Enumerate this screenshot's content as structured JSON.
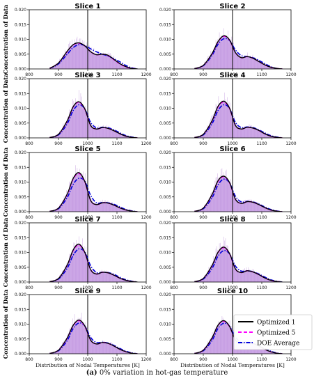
{
  "caption": {
    "tag": "(a)",
    "text": " 0% variation in hot-gas temperature"
  },
  "legend": {
    "entries": [
      {
        "label": "Optimized 1",
        "color": "#000000",
        "style": "solid"
      },
      {
        "label": "Optimized 5",
        "color": "#ff00ff",
        "style": "dashed"
      },
      {
        "label": "DOE Average",
        "color": "#0000dd",
        "style": "dashdot"
      }
    ]
  },
  "colors": {
    "hist": "#c9a0e6",
    "hist_edge": "#b98ad9",
    "vline": "#000000"
  },
  "chart_data": [
    {
      "type": "area",
      "title": "Slice 1",
      "ylabel": "Concentration of Data",
      "xlabel": "",
      "xlim": [
        800,
        1200
      ],
      "ylim": [
        0,
        0.02
      ],
      "xticks": [
        800,
        900,
        1000,
        1100,
        1200
      ],
      "yticks": [
        0,
        0.005,
        0.01,
        0.015,
        0.02
      ],
      "vline": 1000,
      "x": [
        870,
        900,
        930,
        950,
        970,
        990,
        1010,
        1030,
        1050,
        1070,
        1090,
        1110,
        1130,
        1150,
        1170
      ],
      "series": [
        {
          "name": "Optimized 1",
          "values": [
            0.0002,
            0.002,
            0.006,
            0.0082,
            0.0088,
            0.0078,
            0.0058,
            0.0048,
            0.005,
            0.0046,
            0.0032,
            0.0018,
            0.0008,
            0.0002,
            0.0
          ]
        },
        {
          "name": "Optimized 5",
          "values": [
            0.0002,
            0.002,
            0.0059,
            0.0081,
            0.0087,
            0.0078,
            0.0058,
            0.0048,
            0.005,
            0.0045,
            0.0031,
            0.0017,
            0.0007,
            0.0002,
            0.0
          ]
        },
        {
          "name": "DOE Average",
          "values": [
            0.0002,
            0.0017,
            0.005,
            0.0072,
            0.0082,
            0.0079,
            0.0068,
            0.0058,
            0.005,
            0.0043,
            0.0034,
            0.0024,
            0.0012,
            0.0004,
            0.0
          ]
        }
      ]
    },
    {
      "type": "area",
      "title": "Slice 2",
      "ylabel": "",
      "xlabel": "",
      "xlim": [
        800,
        1200
      ],
      "ylim": [
        0,
        0.02
      ],
      "xticks": [
        800,
        900,
        1000,
        1100,
        1200
      ],
      "yticks": [
        0,
        0.005,
        0.01,
        0.015,
        0.02
      ],
      "vline": 1000,
      "x": [
        870,
        900,
        930,
        950,
        970,
        990,
        1010,
        1030,
        1050,
        1070,
        1090,
        1110,
        1130,
        1150,
        1170
      ],
      "series": [
        {
          "name": "Optimized 1",
          "values": [
            0.0001,
            0.0012,
            0.0052,
            0.0092,
            0.0112,
            0.0098,
            0.0055,
            0.0038,
            0.0042,
            0.0036,
            0.0025,
            0.0014,
            0.0006,
            0.0002,
            0.0
          ]
        },
        {
          "name": "Optimized 5",
          "values": [
            0.0001,
            0.0012,
            0.0051,
            0.0091,
            0.011,
            0.0097,
            0.0055,
            0.0038,
            0.0042,
            0.0036,
            0.0025,
            0.0014,
            0.0006,
            0.0002,
            0.0
          ]
        },
        {
          "name": "DOE Average",
          "values": [
            0.0001,
            0.0011,
            0.0046,
            0.0083,
            0.0102,
            0.0096,
            0.0064,
            0.0045,
            0.0042,
            0.0038,
            0.0029,
            0.0018,
            0.0008,
            0.0002,
            0.0
          ]
        }
      ]
    },
    {
      "type": "area",
      "title": "Slice 3",
      "ylabel": "Concentration of Data",
      "xlabel": "",
      "xlim": [
        800,
        1200
      ],
      "ylim": [
        0,
        0.02
      ],
      "xticks": [
        800,
        900,
        1000,
        1100,
        1200
      ],
      "yticks": [
        0,
        0.005,
        0.01,
        0.015,
        0.02
      ],
      "vline": 1000,
      "x": [
        870,
        900,
        930,
        950,
        970,
        990,
        1010,
        1030,
        1050,
        1070,
        1090,
        1110,
        1130,
        1150,
        1170
      ],
      "series": [
        {
          "name": "Optimized 1",
          "values": [
            0.0001,
            0.0012,
            0.0058,
            0.0105,
            0.0122,
            0.0098,
            0.0042,
            0.003,
            0.0035,
            0.0032,
            0.0024,
            0.0014,
            0.0006,
            0.0002,
            0.0
          ]
        },
        {
          "name": "Optimized 5",
          "values": [
            0.0001,
            0.0012,
            0.0057,
            0.0104,
            0.012,
            0.0097,
            0.0042,
            0.003,
            0.0035,
            0.0032,
            0.0024,
            0.0014,
            0.0006,
            0.0002,
            0.0
          ]
        },
        {
          "name": "DOE Average",
          "values": [
            0.0001,
            0.001,
            0.0048,
            0.0092,
            0.0112,
            0.0098,
            0.0052,
            0.0034,
            0.0036,
            0.0034,
            0.0027,
            0.0017,
            0.0008,
            0.0003,
            0.0
          ]
        }
      ]
    },
    {
      "type": "area",
      "title": "Slice 4",
      "ylabel": "",
      "xlabel": "",
      "xlim": [
        800,
        1200
      ],
      "ylim": [
        0,
        0.02
      ],
      "xticks": [
        800,
        900,
        1000,
        1100,
        1200
      ],
      "yticks": [
        0,
        0.005,
        0.01,
        0.015,
        0.02
      ],
      "vline": 1000,
      "x": [
        870,
        900,
        930,
        950,
        970,
        990,
        1010,
        1030,
        1050,
        1070,
        1090,
        1110,
        1130,
        1150,
        1170
      ],
      "series": [
        {
          "name": "Optimized 1",
          "values": [
            0.0001,
            0.0012,
            0.0058,
            0.0106,
            0.0124,
            0.01,
            0.0042,
            0.003,
            0.0036,
            0.0033,
            0.0025,
            0.0014,
            0.0006,
            0.0002,
            0.0
          ]
        },
        {
          "name": "Optimized 5",
          "values": [
            0.0001,
            0.0012,
            0.0057,
            0.0104,
            0.0121,
            0.0099,
            0.0042,
            0.003,
            0.0036,
            0.0033,
            0.0025,
            0.0014,
            0.0006,
            0.0002,
            0.0
          ]
        },
        {
          "name": "DOE Average",
          "values": [
            0.0001,
            0.001,
            0.0048,
            0.0092,
            0.0112,
            0.0099,
            0.0052,
            0.0035,
            0.0037,
            0.0035,
            0.0027,
            0.0017,
            0.0008,
            0.0003,
            0.0
          ]
        }
      ]
    },
    {
      "type": "area",
      "title": "Slice 5",
      "ylabel": "Concentration of Data",
      "xlabel": "",
      "xlim": [
        800,
        1200
      ],
      "ylim": [
        0,
        0.02
      ],
      "xticks": [
        800,
        900,
        1000,
        1100,
        1200
      ],
      "yticks": [
        0,
        0.005,
        0.01,
        0.015,
        0.02
      ],
      "vline": 1000,
      "x": [
        870,
        900,
        930,
        950,
        970,
        990,
        1010,
        1030,
        1050,
        1070,
        1090,
        1110,
        1130,
        1150,
        1170
      ],
      "series": [
        {
          "name": "Optimized 1",
          "values": [
            0.0001,
            0.0012,
            0.006,
            0.0112,
            0.0132,
            0.0102,
            0.0038,
            0.0024,
            0.003,
            0.0029,
            0.0022,
            0.0013,
            0.0006,
            0.0002,
            0.0
          ]
        },
        {
          "name": "Optimized 5",
          "values": [
            0.0001,
            0.0012,
            0.0059,
            0.011,
            0.0129,
            0.0101,
            0.0038,
            0.0024,
            0.003,
            0.0029,
            0.0022,
            0.0013,
            0.0006,
            0.0002,
            0.0
          ]
        },
        {
          "name": "DOE Average",
          "values": [
            0.0001,
            0.001,
            0.0048,
            0.0092,
            0.0113,
            0.0103,
            0.0055,
            0.003,
            0.0031,
            0.003,
            0.0025,
            0.0016,
            0.0008,
            0.0003,
            0.0
          ]
        }
      ]
    },
    {
      "type": "area",
      "title": "Slice 6",
      "ylabel": "",
      "xlabel": "",
      "xlim": [
        800,
        1200
      ],
      "ylim": [
        0,
        0.02
      ],
      "xticks": [
        800,
        900,
        1000,
        1100,
        1200
      ],
      "yticks": [
        0,
        0.005,
        0.01,
        0.015,
        0.02
      ],
      "vline": 1000,
      "x": [
        870,
        900,
        930,
        950,
        970,
        990,
        1010,
        1030,
        1050,
        1070,
        1090,
        1110,
        1130,
        1150,
        1170
      ],
      "series": [
        {
          "name": "Optimized 1",
          "values": [
            0.0001,
            0.0012,
            0.0058,
            0.0104,
            0.012,
            0.0098,
            0.0042,
            0.0028,
            0.0034,
            0.0032,
            0.0024,
            0.0014,
            0.0006,
            0.0002,
            0.0
          ]
        },
        {
          "name": "Optimized 5",
          "values": [
            0.0001,
            0.0012,
            0.0057,
            0.0102,
            0.0118,
            0.0097,
            0.0042,
            0.0028,
            0.0034,
            0.0032,
            0.0024,
            0.0014,
            0.0006,
            0.0002,
            0.0
          ]
        },
        {
          "name": "DOE Average",
          "values": [
            0.0001,
            0.001,
            0.0047,
            0.009,
            0.011,
            0.0097,
            0.0052,
            0.0033,
            0.0035,
            0.0033,
            0.0026,
            0.0016,
            0.0008,
            0.0003,
            0.0
          ]
        }
      ]
    },
    {
      "type": "area",
      "title": "Slice 7",
      "ylabel": "Concentration of Data",
      "xlabel": "",
      "xlim": [
        800,
        1200
      ],
      "ylim": [
        0,
        0.02
      ],
      "xticks": [
        800,
        900,
        1000,
        1100,
        1200
      ],
      "yticks": [
        0,
        0.005,
        0.01,
        0.015,
        0.02
      ],
      "vline": 1000,
      "x": [
        870,
        900,
        930,
        950,
        970,
        990,
        1010,
        1030,
        1050,
        1070,
        1090,
        1110,
        1130,
        1150,
        1170
      ],
      "series": [
        {
          "name": "Optimized 1",
          "values": [
            0.0001,
            0.0012,
            0.0058,
            0.0108,
            0.0128,
            0.01,
            0.0042,
            0.0027,
            0.0033,
            0.0031,
            0.0023,
            0.0013,
            0.0006,
            0.0002,
            0.0
          ]
        },
        {
          "name": "Optimized 5",
          "values": [
            0.0001,
            0.0012,
            0.0057,
            0.0106,
            0.0125,
            0.0099,
            0.0042,
            0.0027,
            0.0033,
            0.0031,
            0.0023,
            0.0013,
            0.0006,
            0.0002,
            0.0
          ]
        },
        {
          "name": "DOE Average",
          "values": [
            0.0001,
            0.001,
            0.0047,
            0.009,
            0.0112,
            0.0101,
            0.0055,
            0.0032,
            0.0033,
            0.0032,
            0.0026,
            0.0016,
            0.0008,
            0.0003,
            0.0
          ]
        }
      ]
    },
    {
      "type": "area",
      "title": "Slice 8",
      "ylabel": "",
      "xlabel": "",
      "xlim": [
        800,
        1200
      ],
      "ylim": [
        0,
        0.02
      ],
      "xticks": [
        800,
        900,
        1000,
        1100,
        1200
      ],
      "yticks": [
        0,
        0.005,
        0.01,
        0.015,
        0.02
      ],
      "vline": 1000,
      "x": [
        870,
        900,
        930,
        950,
        970,
        990,
        1010,
        1030,
        1050,
        1070,
        1090,
        1110,
        1130,
        1150,
        1170
      ],
      "series": [
        {
          "name": "Optimized 1",
          "values": [
            0.0001,
            0.0012,
            0.0056,
            0.01,
            0.0118,
            0.0096,
            0.0044,
            0.0032,
            0.0038,
            0.0034,
            0.0025,
            0.0014,
            0.0006,
            0.0002,
            0.0
          ]
        },
        {
          "name": "Optimized 5",
          "values": [
            0.0001,
            0.0012,
            0.0055,
            0.0099,
            0.0116,
            0.0095,
            0.0044,
            0.0032,
            0.0038,
            0.0034,
            0.0025,
            0.0014,
            0.0006,
            0.0002,
            0.0
          ]
        },
        {
          "name": "DOE Average",
          "values": [
            0.0001,
            0.001,
            0.0046,
            0.0087,
            0.0106,
            0.0095,
            0.0054,
            0.0037,
            0.0038,
            0.0035,
            0.0027,
            0.0017,
            0.0008,
            0.0003,
            0.0
          ]
        }
      ]
    },
    {
      "type": "area",
      "title": "Slice 9",
      "ylabel": "Concentration of Data",
      "xlabel": "Distribution of Nodal Temperatures [K]",
      "xlim": [
        800,
        1200
      ],
      "ylim": [
        0,
        0.02
      ],
      "xticks": [
        800,
        900,
        1000,
        1100,
        1200
      ],
      "yticks": [
        0,
        0.005,
        0.01,
        0.015,
        0.02
      ],
      "vline": 1000,
      "x": [
        870,
        900,
        930,
        950,
        970,
        990,
        1010,
        1030,
        1050,
        1070,
        1090,
        1110,
        1130,
        1150,
        1170
      ],
      "series": [
        {
          "name": "Optimized 1",
          "values": [
            0.0001,
            0.0012,
            0.0054,
            0.0096,
            0.0114,
            0.0094,
            0.0046,
            0.0033,
            0.0038,
            0.0035,
            0.0026,
            0.0015,
            0.0007,
            0.0002,
            0.0
          ]
        },
        {
          "name": "Optimized 5",
          "values": [
            0.0001,
            0.0012,
            0.0053,
            0.0095,
            0.0112,
            0.0093,
            0.0046,
            0.0033,
            0.0038,
            0.0035,
            0.0026,
            0.0015,
            0.0007,
            0.0002,
            0.0
          ]
        },
        {
          "name": "DOE Average",
          "values": [
            0.0001,
            0.001,
            0.0045,
            0.0085,
            0.0104,
            0.0094,
            0.0055,
            0.0038,
            0.0039,
            0.0036,
            0.0028,
            0.0018,
            0.0009,
            0.0003,
            0.0
          ]
        }
      ]
    },
    {
      "type": "area",
      "title": "Slice 10",
      "ylabel": "",
      "xlabel": "Distribution of Nodal Temperatures [K]",
      "xlim": [
        800,
        1200
      ],
      "ylim": [
        0,
        0.02
      ],
      "xticks": [
        800,
        900,
        1000,
        1100,
        1200
      ],
      "yticks": [
        0,
        0.005,
        0.01,
        0.015,
        0.02
      ],
      "vline": 1000,
      "x": [
        870,
        900,
        930,
        950,
        970,
        990,
        1010,
        1030,
        1050,
        1070,
        1090,
        1110,
        1130,
        1150,
        1170
      ],
      "series": [
        {
          "name": "Optimized 1",
          "values": [
            0.0001,
            0.0012,
            0.0054,
            0.0096,
            0.0112,
            0.0092,
            0.0046,
            0.0034,
            0.0039,
            0.0035,
            0.0026,
            0.0015,
            0.0007,
            0.0002,
            0.0
          ]
        },
        {
          "name": "Optimized 5",
          "values": [
            0.0001,
            0.0012,
            0.0053,
            0.0095,
            0.011,
            0.0091,
            0.0046,
            0.0034,
            0.0039,
            0.0035,
            0.0026,
            0.0015,
            0.0007,
            0.0002,
            0.0
          ]
        },
        {
          "name": "DOE Average",
          "values": [
            0.0001,
            0.001,
            0.0045,
            0.0085,
            0.0103,
            0.0093,
            0.0056,
            0.0039,
            0.004,
            0.0036,
            0.0028,
            0.0018,
            0.0009,
            0.0003,
            0.0
          ]
        }
      ]
    }
  ]
}
